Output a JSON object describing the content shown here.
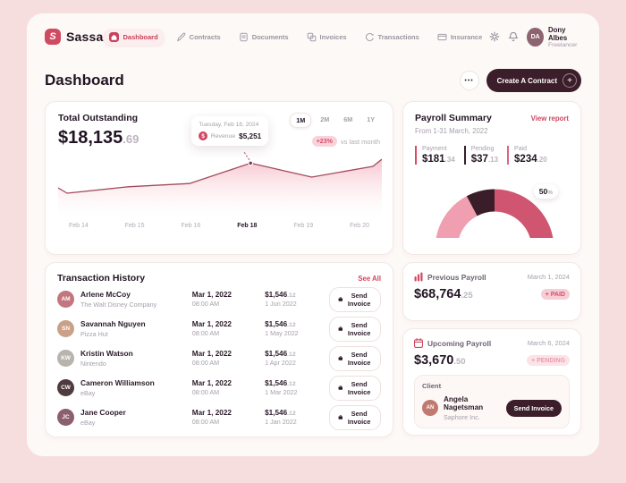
{
  "app": {
    "name": "Sassa",
    "logo_letter": "S"
  },
  "nav": {
    "items": [
      {
        "label": "Dashboard",
        "active": true
      },
      {
        "label": "Contracts",
        "active": false
      },
      {
        "label": "Documents",
        "active": false
      },
      {
        "label": "Invoices",
        "active": false
      },
      {
        "label": "Transactions",
        "active": false
      },
      {
        "label": "Insurance",
        "active": false
      }
    ]
  },
  "user": {
    "name": "Dony Albes",
    "role": "Freelancer",
    "initials": "DA"
  },
  "page": {
    "title": "Dashboard",
    "more_label": "•••",
    "create_button": "Create A Contract",
    "create_plus": "+"
  },
  "outstanding": {
    "title": "Total Outstanding",
    "amount_main": "$18,135",
    "amount_cents": ".69",
    "ranges": [
      "1M",
      "2M",
      "6M",
      "1Y"
    ],
    "active_range": "1M",
    "change": "+23%",
    "change_caption": "vs last month",
    "tooltip": {
      "date": "Tuesday, Feb 18, 2024",
      "dollar": "$",
      "label": "Revenue",
      "value": "$5,251"
    }
  },
  "chart_data": [
    {
      "type": "area",
      "title": "Total Outstanding",
      "x": [
        "Feb 14",
        "Feb 15",
        "Feb 16",
        "Feb 18",
        "Feb 19",
        "Feb 20"
      ],
      "highlight_x": "Feb 18",
      "series": [
        {
          "name": "Revenue",
          "values": [
            3850,
            4150,
            4300,
            5251,
            4600,
            5100
          ]
        }
      ],
      "annotation": {
        "date": "Tuesday, Feb 18, 2024",
        "label": "Revenue",
        "value": 5251
      },
      "line_color": "#a34b5d",
      "fill_color": "#f5c2cc",
      "grid": false
    },
    {
      "type": "pie",
      "title": "Payroll Summary",
      "style": "half-donut-gauge",
      "slices": [
        {
          "label": "Payment",
          "value": 35,
          "color": "#f09fb1"
        },
        {
          "label": "Pending",
          "value": 15,
          "color": "#3a1d29"
        },
        {
          "label": "Paid",
          "value": 50,
          "color": "#cf5570"
        }
      ],
      "center_label": "50%"
    }
  ],
  "payroll_summary": {
    "title": "Payroll Summary",
    "link": "View report",
    "period": "From 1-31 March, 2022",
    "stats": [
      {
        "label": "Payment",
        "main": "$181",
        "cents": ".34",
        "bar_color": "#d94a64"
      },
      {
        "label": "Pending",
        "main": "$37",
        "cents": ".13",
        "bar_color": "#33202e"
      },
      {
        "label": "Paid",
        "main": "$234",
        "cents": ".20",
        "bar_color": "#e2647f"
      }
    ],
    "gauge_value": "50",
    "gauge_unit": "%"
  },
  "transactions": {
    "title": "Transaction History",
    "link": "See All",
    "button_label": "Send Invoice",
    "rows": [
      {
        "name": "Arlene McCoy",
        "company": "The Walt Disney Company",
        "date": "Mar 1, 2022",
        "time": "08:00 AM",
        "amount": "$1,546",
        "cents": ".12",
        "due": "1 Jun 2022",
        "initials": "AM"
      },
      {
        "name": "Savannah Nguyen",
        "company": "Pizza Hut",
        "date": "Mar 1, 2022",
        "time": "08:00 AM",
        "amount": "$1,546",
        "cents": ".12",
        "due": "1 May 2022",
        "initials": "SN"
      },
      {
        "name": "Kristin Watson",
        "company": "Nintendo",
        "date": "Mar 1, 2022",
        "time": "08:00 AM",
        "amount": "$1,546",
        "cents": ".12",
        "due": "1 Apr 2022",
        "initials": "KW"
      },
      {
        "name": "Cameron Williamson",
        "company": "eBay",
        "date": "Mar 1, 2022",
        "time": "08:00 AM",
        "amount": "$1,546",
        "cents": ".12",
        "due": "1 Mar 2022",
        "initials": "CW"
      },
      {
        "name": "Jane Cooper",
        "company": "eBay",
        "date": "Mar 1, 2022",
        "time": "08:00 AM",
        "amount": "$1,546",
        "cents": ".12",
        "due": "1 Jan 2022",
        "initials": "JC"
      }
    ]
  },
  "previous_payroll": {
    "title": "Previous Payroll",
    "date": "March 1, 2024",
    "amount": "$68,764",
    "cents": ".25",
    "badge": "+ PAID"
  },
  "upcoming_payroll": {
    "title": "Upcoming Payroll",
    "date": "March 6, 2024",
    "amount": "$3,670",
    "cents": ".50",
    "badge": "+ PENDING",
    "client_label": "Client",
    "client_name": "Angela Nagetsman",
    "client_company": "Saphore Inc.",
    "button": "Send Invoice"
  },
  "colors": {
    "accent_red": "#cf4861",
    "dark_maroon": "#3c1d2a",
    "badge_pink": "#f8d4da",
    "panel": "#fdf9f6",
    "background": "#f7dede"
  }
}
